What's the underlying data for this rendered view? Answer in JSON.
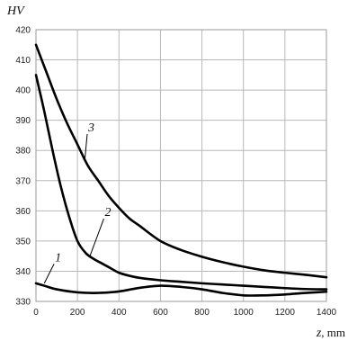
{
  "chart_data": {
    "type": "line",
    "ylabel": "HV",
    "xlabel_var": "z",
    "xlabel_unit": ", mm",
    "xlim": [
      0,
      1400
    ],
    "ylim": [
      330,
      420
    ],
    "x_ticks": [
      0,
      200,
      400,
      600,
      800,
      1000,
      1200,
      1400
    ],
    "y_ticks": [
      330,
      340,
      350,
      360,
      370,
      380,
      390,
      400,
      410,
      420
    ],
    "grid": true,
    "series": [
      {
        "name": "1",
        "x": [
          0,
          50,
          100,
          200,
          300,
          400,
          500,
          600,
          700,
          800,
          900,
          1000,
          1100,
          1200,
          1300,
          1400
        ],
        "y": [
          336,
          335,
          334,
          333,
          332.8,
          333.3,
          334.5,
          335.2,
          334.8,
          334,
          332.8,
          332,
          332,
          332.3,
          332.8,
          333.2
        ]
      },
      {
        "name": "2",
        "x": [
          0,
          40,
          80,
          120,
          160,
          200,
          240,
          280,
          320,
          360,
          400,
          450,
          500,
          600,
          700,
          800,
          900,
          1000,
          1100,
          1200,
          1300,
          1400
        ],
        "y": [
          405,
          393,
          380,
          368,
          358,
          350,
          346,
          344,
          342.5,
          341,
          339.5,
          338.5,
          337.8,
          337,
          336.5,
          336,
          335.6,
          335.2,
          334.8,
          334.4,
          334.1,
          334
        ]
      },
      {
        "name": "3",
        "x": [
          0,
          50,
          100,
          150,
          200,
          250,
          300,
          350,
          400,
          450,
          500,
          600,
          700,
          800,
          900,
          1000,
          1100,
          1200,
          1300,
          1400
        ],
        "y": [
          415,
          406,
          397,
          389,
          382,
          375,
          370,
          365,
          361,
          357.5,
          355,
          350,
          347,
          344.8,
          343,
          341.5,
          340.3,
          339.5,
          338.8,
          338
        ]
      }
    ],
    "labels": [
      {
        "series": "1",
        "text": "1",
        "lx": 40,
        "ly": 336,
        "tx": 100,
        "ty": 343
      },
      {
        "series": "2",
        "text": "2",
        "lx": 260,
        "ly": 345,
        "tx": 340,
        "ty": 358
      },
      {
        "series": "3",
        "text": "3",
        "lx": 235,
        "ly": 376.5,
        "tx": 260,
        "ty": 386
      }
    ]
  }
}
